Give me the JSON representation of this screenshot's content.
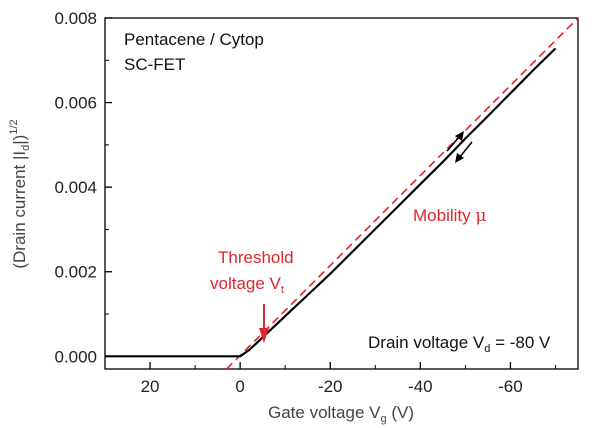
{
  "chart_data": {
    "type": "line",
    "x_axis": {
      "label_main": "Gate voltage V",
      "label_sub": "g",
      "label_unit": " (V)",
      "lim": [
        30,
        -75
      ],
      "reversed": true,
      "ticks": [
        20,
        0,
        -20,
        -40,
        -60
      ],
      "tick_labels": [
        "20",
        "0",
        "-20",
        "-40",
        "-60"
      ]
    },
    "y_axis": {
      "label_pre": "(Drain current |I",
      "label_sub": "d",
      "label_post": "|)",
      "label_sup": "1/2",
      "lim": [
        -0.0003,
        0.008
      ],
      "ticks": [
        0.0,
        0.002,
        0.004,
        0.006,
        0.008
      ],
      "tick_labels": [
        "0.000",
        "0.002",
        "0.004",
        "0.006",
        "0.008"
      ]
    },
    "series": [
      {
        "role": "measured",
        "color": "#000000",
        "x": [
          30,
          20,
          10,
          2,
          0,
          -2,
          -5,
          -10,
          -15,
          -20,
          -25,
          -30,
          -35,
          -40,
          -45,
          -50,
          -55,
          -60,
          -65,
          -70
        ],
        "y": [
          0.0,
          0.0,
          0.0,
          0.0,
          0.0,
          0.00015,
          0.00045,
          0.00095,
          0.00145,
          0.00195,
          0.00248,
          0.00301,
          0.00354,
          0.00407,
          0.0046,
          0.00515,
          0.00568,
          0.00622,
          0.00676,
          0.00728
        ]
      },
      {
        "role": "linear-fit",
        "color": "#e0262d",
        "dashed": true,
        "x": [
          3,
          -75
        ],
        "y": [
          -0.0003,
          0.008
        ]
      }
    ],
    "annotations": {
      "sample_line1": "Pentacene / Cytop",
      "sample_line2": "SC-FET",
      "mobility_text": "Mobility",
      "mobility_symbol": "μ",
      "threshold_line1": "Threshold",
      "threshold_line2": "voltage V",
      "threshold_sub": "t",
      "drain_main": "Drain voltage V",
      "drain_sub": "d",
      "drain_value": " = -80 V"
    },
    "colors": {
      "measured": "#000000",
      "fit": "#e0262d",
      "annotation_red": "#e0262d"
    },
    "grid": false
  }
}
